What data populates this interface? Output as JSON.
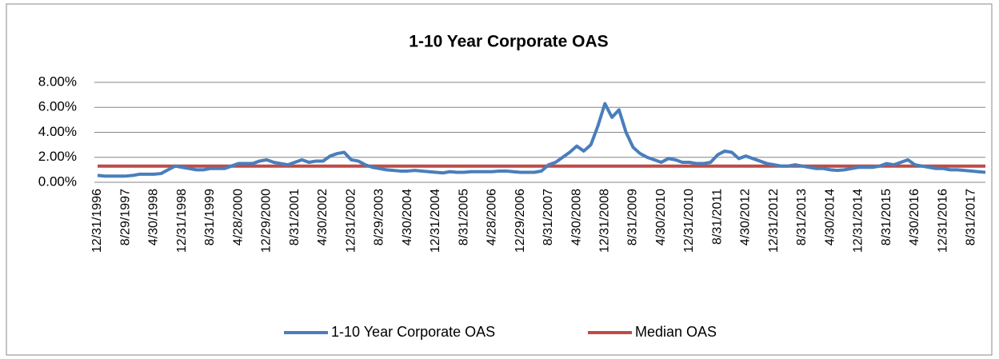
{
  "chart_data": {
    "type": "line",
    "title": "1-10 Year Corporate OAS",
    "categories": [
      "12/31/1996",
      null,
      null,
      null,
      "8/29/1997",
      null,
      null,
      null,
      "4/30/1998",
      null,
      null,
      null,
      "12/31/1998",
      null,
      null,
      null,
      "8/31/1999",
      null,
      null,
      null,
      "4/28/2000",
      null,
      null,
      null,
      "12/29/2000",
      null,
      null,
      null,
      "8/31/2001",
      null,
      null,
      null,
      "4/30/2002",
      null,
      null,
      null,
      "12/31/2002",
      null,
      null,
      null,
      "8/29/2003",
      null,
      null,
      null,
      "4/30/2004",
      null,
      null,
      null,
      "12/31/2004",
      null,
      null,
      null,
      "8/31/2005",
      null,
      null,
      null,
      "4/28/2006",
      null,
      null,
      null,
      "12/29/2006",
      null,
      null,
      null,
      "8/31/2007",
      null,
      null,
      null,
      "4/30/2008",
      null,
      null,
      null,
      "12/31/2008",
      null,
      null,
      null,
      "8/31/2009",
      null,
      null,
      null,
      "4/30/2010",
      null,
      null,
      null,
      "12/31/2010",
      null,
      null,
      null,
      "8/31/2011",
      null,
      null,
      null,
      "4/30/2012",
      null,
      null,
      null,
      "12/31/2012",
      null,
      null,
      null,
      "8/31/2013",
      null,
      null,
      null,
      "4/30/2014",
      null,
      null,
      null,
      "12/31/2014",
      null,
      null,
      null,
      "8/31/2015",
      null,
      null,
      null,
      "4/30/2016",
      null,
      null,
      null,
      "12/31/2016",
      null,
      null,
      null,
      "8/31/2017",
      null,
      null
    ],
    "series": [
      {
        "name": "1-10 Year Corporate OAS",
        "color": "#4a7ebb",
        "values": [
          0.55,
          0.5,
          0.5,
          0.5,
          0.5,
          0.55,
          0.65,
          0.65,
          0.65,
          0.7,
          1.0,
          1.3,
          1.2,
          1.1,
          1.0,
          1.0,
          1.1,
          1.1,
          1.1,
          1.3,
          1.5,
          1.5,
          1.5,
          1.7,
          1.8,
          1.6,
          1.5,
          1.4,
          1.6,
          1.8,
          1.6,
          1.7,
          1.7,
          2.1,
          2.3,
          2.4,
          1.8,
          1.7,
          1.4,
          1.2,
          1.1,
          1.0,
          0.95,
          0.9,
          0.9,
          0.95,
          0.9,
          0.85,
          0.8,
          0.75,
          0.85,
          0.8,
          0.8,
          0.85,
          0.85,
          0.85,
          0.85,
          0.9,
          0.9,
          0.85,
          0.8,
          0.8,
          0.8,
          0.9,
          1.4,
          1.6,
          2.0,
          2.4,
          2.9,
          2.5,
          3.0,
          4.5,
          6.3,
          5.2,
          5.8,
          4.0,
          2.8,
          2.3,
          2.0,
          1.8,
          1.6,
          1.9,
          1.8,
          1.6,
          1.6,
          1.5,
          1.5,
          1.6,
          2.2,
          2.5,
          2.4,
          1.9,
          2.1,
          1.9,
          1.7,
          1.5,
          1.4,
          1.3,
          1.3,
          1.4,
          1.3,
          1.2,
          1.1,
          1.1,
          1.0,
          0.95,
          1.0,
          1.1,
          1.2,
          1.2,
          1.2,
          1.3,
          1.5,
          1.4,
          1.6,
          1.8,
          1.4,
          1.3,
          1.2,
          1.1,
          1.1,
          1.0,
          1.0,
          0.95,
          0.9,
          0.85,
          0.8
        ]
      },
      {
        "name": "Median OAS",
        "color": "#be4b48",
        "values": [
          1.3,
          1.3,
          1.3,
          1.3,
          1.3,
          1.3,
          1.3,
          1.3,
          1.3,
          1.3,
          1.3,
          1.3,
          1.3,
          1.3,
          1.3,
          1.3,
          1.3,
          1.3,
          1.3,
          1.3,
          1.3,
          1.3,
          1.3,
          1.3,
          1.3,
          1.3,
          1.3,
          1.3,
          1.3,
          1.3,
          1.3,
          1.3,
          1.3,
          1.3,
          1.3,
          1.3,
          1.3,
          1.3,
          1.3,
          1.3,
          1.3,
          1.3,
          1.3,
          1.3,
          1.3,
          1.3,
          1.3,
          1.3,
          1.3,
          1.3,
          1.3,
          1.3,
          1.3,
          1.3,
          1.3,
          1.3,
          1.3,
          1.3,
          1.3,
          1.3,
          1.3,
          1.3,
          1.3,
          1.3,
          1.3,
          1.3,
          1.3,
          1.3,
          1.3,
          1.3,
          1.3,
          1.3,
          1.3,
          1.3,
          1.3,
          1.3,
          1.3,
          1.3,
          1.3,
          1.3,
          1.3,
          1.3,
          1.3,
          1.3,
          1.3,
          1.3,
          1.3,
          1.3,
          1.3,
          1.3,
          1.3,
          1.3,
          1.3,
          1.3,
          1.3,
          1.3,
          1.3,
          1.3,
          1.3,
          1.3,
          1.3,
          1.3,
          1.3,
          1.3,
          1.3,
          1.3,
          1.3,
          1.3,
          1.3,
          1.3,
          1.3,
          1.3,
          1.3,
          1.3,
          1.3,
          1.3,
          1.3,
          1.3,
          1.3,
          1.3,
          1.3,
          1.3,
          1.3,
          1.3,
          1.3,
          1.3,
          1.3
        ]
      }
    ],
    "ylim": [
      0,
      8
    ],
    "yticks": [
      {
        "value": 0,
        "label": "0.00%"
      },
      {
        "value": 2,
        "label": "2.00%"
      },
      {
        "value": 4,
        "label": "4.00%"
      },
      {
        "value": 6,
        "label": "6.00%"
      },
      {
        "value": 8,
        "label": "8.00%"
      }
    ],
    "grid": true,
    "legend": "bottom"
  }
}
